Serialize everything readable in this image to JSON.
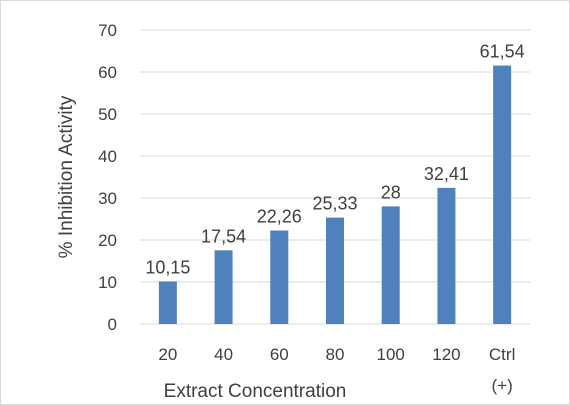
{
  "chart_data": {
    "type": "bar",
    "categories": [
      "20",
      "40",
      "60",
      "80",
      "100",
      "120",
      "Ctrl (+)"
    ],
    "values": [
      10.15,
      17.54,
      22.26,
      25.33,
      28,
      32.41,
      61.54
    ],
    "data_labels": [
      "10,15",
      "17,54",
      "22,26",
      "25,33",
      "28",
      "32,41",
      "61,54"
    ],
    "title": "",
    "xlabel": "Extract Concentration",
    "ylabel": "% Inhibition Activity",
    "ylim": [
      0,
      70
    ],
    "yticks": [
      "0",
      "10",
      "20",
      "30",
      "40",
      "50",
      "60",
      "70"
    ],
    "grid": true,
    "legend": "none",
    "bar_color": "#4f81bd",
    "grid_color": "#d9d9d9"
  }
}
